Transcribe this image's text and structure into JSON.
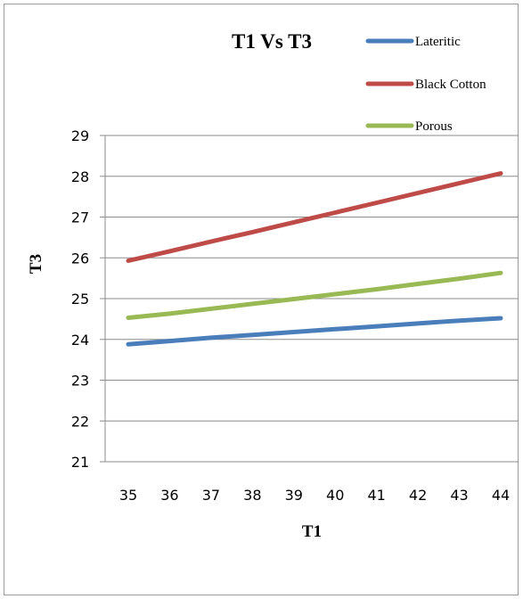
{
  "chart_data": {
    "type": "line",
    "title": "T1 Vs T3",
    "xlabel": "T1",
    "ylabel": "T3",
    "x": [
      35,
      36,
      37,
      38,
      39,
      40,
      41,
      42,
      43,
      44
    ],
    "xlim": [
      35,
      44
    ],
    "ylim": [
      21,
      29
    ],
    "yticks": [
      21,
      22,
      23,
      24,
      25,
      26,
      27,
      28,
      29
    ],
    "grid": true,
    "legend_position": "top-right",
    "series": [
      {
        "name": "Lateritic",
        "color": "#4a7ebb",
        "values": [
          23.88,
          23.96,
          24.04,
          24.11,
          24.18,
          24.25,
          24.32,
          24.39,
          24.46,
          24.52
        ]
      },
      {
        "name": "Black Cotton",
        "color": "#be4b48",
        "values": [
          25.93,
          26.16,
          26.4,
          26.63,
          26.87,
          27.11,
          27.35,
          27.59,
          27.83,
          28.07
        ]
      },
      {
        "name": "Porous",
        "color": "#98b954",
        "values": [
          24.53,
          24.63,
          24.75,
          24.87,
          24.99,
          25.11,
          25.23,
          25.36,
          25.49,
          25.63
        ]
      }
    ]
  }
}
